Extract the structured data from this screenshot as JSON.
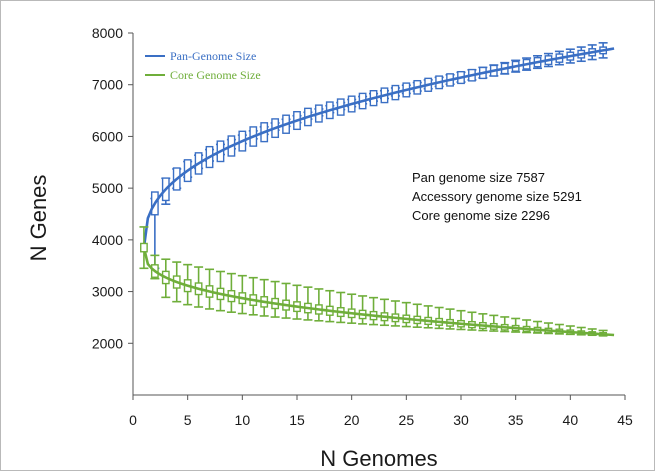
{
  "chart_data": {
    "type": "line",
    "title": "",
    "xlabel": "N Genomes",
    "ylabel": "N Genes",
    "xlim": [
      0,
      45
    ],
    "ylim": [
      1000,
      8000
    ],
    "x_ticks": [
      0,
      5,
      10,
      15,
      20,
      25,
      30,
      35,
      40,
      45
    ],
    "y_ticks": [
      2000,
      3000,
      4000,
      5000,
      6000,
      7000,
      8000
    ],
    "grid": false,
    "legend_position": "top-left",
    "series": [
      {
        "name": "Pan-Genome Size",
        "color": "#3a6fc4",
        "curve": {
          "start_x": 1,
          "start_y": 3850,
          "end_x": 44,
          "end_y": 7700,
          "exponent": 0.4
        },
        "boxplots": {
          "x_from": 2,
          "x_to": 43,
          "step": 1,
          "whisker_low": {
            "start": 3450,
            "end": 7550,
            "exponent": 0.32
          },
          "whisker_high": {
            "start": 4800,
            "end": 7850,
            "exponent": 0.55
          },
          "box_half_height": {
            "start": 220,
            "end": 60
          }
        }
      },
      {
        "name": "Core Genome Size",
        "color": "#6fae3a",
        "curve": {
          "start_x": 1,
          "start_y": 3850,
          "end_x": 44,
          "end_y": 2160,
          "exponent": 0.35
        },
        "boxplots": {
          "x_from": 2,
          "x_to": 43,
          "step": 1,
          "whisker_low": {
            "start": 3250,
            "end": 2140,
            "exponent": 0.3
          },
          "whisker_high": {
            "start": 3700,
            "end": 2220,
            "exponent": 0.8
          },
          "box_half_height": {
            "start": 120,
            "end": 30
          }
        }
      }
    ],
    "start_point": {
      "x": 1,
      "y": 3850,
      "whisker_low": 3450,
      "whisker_high": 4250
    },
    "annotations": [
      "Pan genome size 7587",
      "Accessory genome size 5291",
      "Core genome size 2296"
    ]
  }
}
